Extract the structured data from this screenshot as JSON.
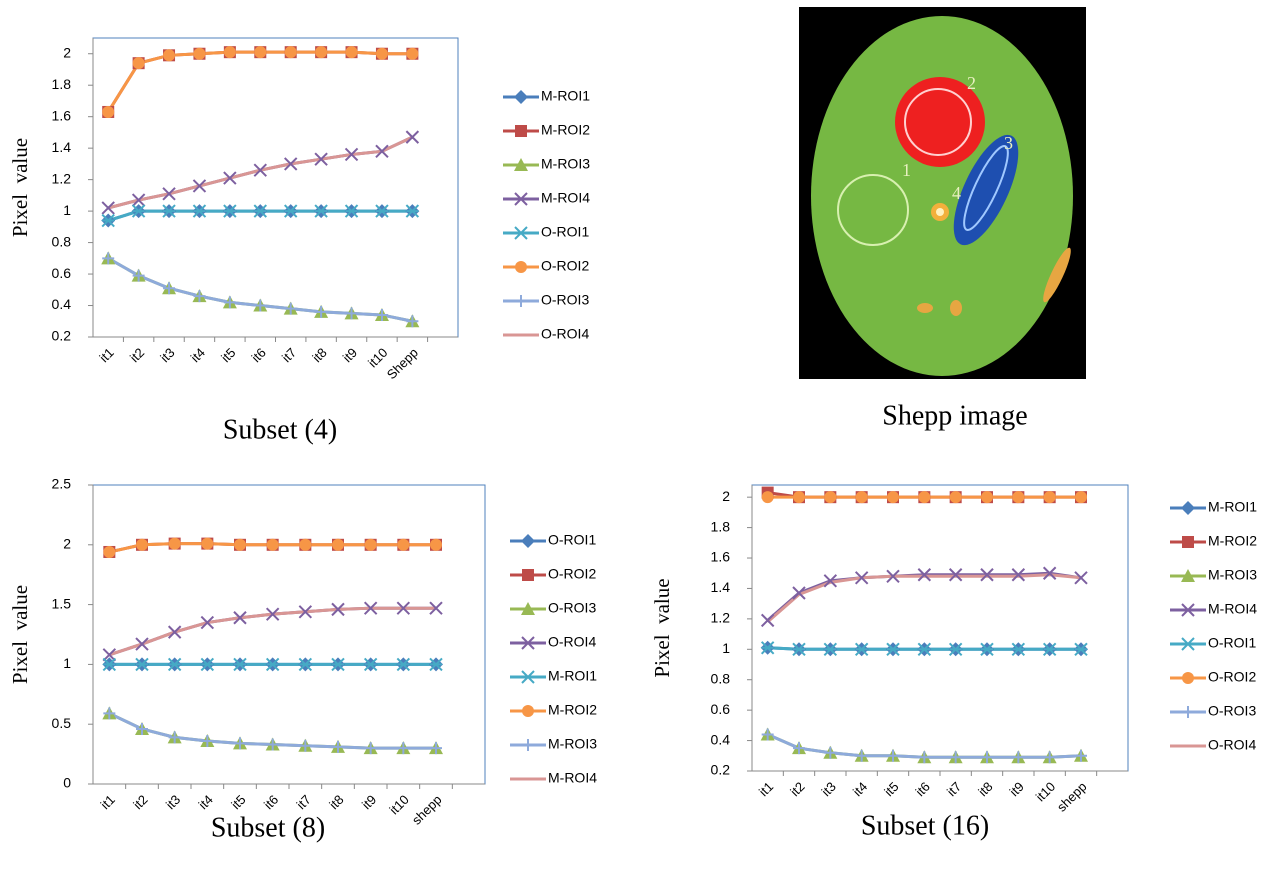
{
  "chart_data": [
    {
      "type": "line",
      "title": "Subset (4)",
      "y_label": "Pixel  value",
      "categories": [
        "it1",
        "it2",
        "it3",
        "it4",
        "it5",
        "it6",
        "it7",
        "it8",
        "it9",
        "it10",
        "Shepp"
      ],
      "ylim": [
        0.2,
        2.1
      ],
      "yticks": [
        0.2,
        0.4,
        0.6,
        0.8,
        1,
        1.2,
        1.4,
        1.6,
        1.8,
        2
      ],
      "series": [
        {
          "name": "M-ROI1",
          "color": "#4a7ebb",
          "marker": "diamond",
          "values": [
            0.94,
            1,
            1,
            1,
            1,
            1,
            1,
            1,
            1,
            1,
            1
          ]
        },
        {
          "name": "M-ROI2",
          "color": "#be4b48",
          "marker": "square",
          "values": [
            1.63,
            1.94,
            1.99,
            2.0,
            2.01,
            2.01,
            2.01,
            2.01,
            2.01,
            2.0,
            2.0
          ]
        },
        {
          "name": "M-ROI3",
          "color": "#98b954",
          "marker": "triangle",
          "values": [
            0.7,
            0.59,
            0.51,
            0.46,
            0.42,
            0.4,
            0.38,
            0.36,
            0.35,
            0.34,
            0.3
          ]
        },
        {
          "name": "M-ROI4",
          "color": "#7d60a0",
          "marker": "x",
          "values": [
            1.02,
            1.07,
            1.11,
            1.16,
            1.21,
            1.26,
            1.3,
            1.33,
            1.36,
            1.38,
            1.47
          ]
        },
        {
          "name": "O-ROI1",
          "color": "#46aac5",
          "marker": "asterisk",
          "values": [
            0.94,
            1,
            1,
            1,
            1,
            1,
            1,
            1,
            1,
            1,
            1
          ]
        },
        {
          "name": "O-ROI2",
          "color": "#f79646",
          "marker": "circle",
          "values": [
            1.63,
            1.94,
            1.99,
            2.0,
            2.01,
            2.01,
            2.01,
            2.01,
            2.01,
            2.0,
            2.0
          ]
        },
        {
          "name": "O-ROI3",
          "color": "#8eaadb",
          "marker": "plus",
          "values": [
            0.7,
            0.59,
            0.51,
            0.46,
            0.42,
            0.4,
            0.38,
            0.36,
            0.35,
            0.34,
            0.3
          ]
        },
        {
          "name": "O-ROI4",
          "color": "#d99694",
          "marker": "none",
          "values": [
            1.02,
            1.07,
            1.11,
            1.16,
            1.21,
            1.26,
            1.3,
            1.33,
            1.36,
            1.38,
            1.47
          ]
        }
      ]
    },
    {
      "type": "line",
      "title": "Subset (8)",
      "y_label": "Pixel  value",
      "categories": [
        "it1",
        "it2",
        "it3",
        "it4",
        "it5",
        "it6",
        "it7",
        "it8",
        "it9",
        "it10",
        "shepp"
      ],
      "ylim": [
        0,
        2.5
      ],
      "yticks": [
        0,
        0.5,
        1,
        1.5,
        2,
        2.5
      ],
      "series": [
        {
          "name": "O-ROI1",
          "color": "#4a7ebb",
          "marker": "diamond",
          "values": [
            1,
            1,
            1,
            1,
            1,
            1,
            1,
            1,
            1,
            1,
            1
          ]
        },
        {
          "name": "O-ROI2",
          "color": "#be4b48",
          "marker": "square",
          "values": [
            1.94,
            2.0,
            2.01,
            2.01,
            2.0,
            2.0,
            2.0,
            2.0,
            2.0,
            2.0,
            2.0
          ]
        },
        {
          "name": "O-ROI3",
          "color": "#98b954",
          "marker": "triangle",
          "values": [
            0.59,
            0.46,
            0.39,
            0.36,
            0.34,
            0.33,
            0.32,
            0.31,
            0.3,
            0.3,
            0.3
          ]
        },
        {
          "name": "O-ROI4",
          "color": "#7d60a0",
          "marker": "x",
          "values": [
            1.08,
            1.17,
            1.27,
            1.35,
            1.39,
            1.42,
            1.44,
            1.46,
            1.47,
            1.47,
            1.47
          ]
        },
        {
          "name": "M-ROI1",
          "color": "#46aac5",
          "marker": "asterisk",
          "values": [
            1,
            1,
            1,
            1,
            1,
            1,
            1,
            1,
            1,
            1,
            1
          ]
        },
        {
          "name": "M-ROI2",
          "color": "#f79646",
          "marker": "circle",
          "values": [
            1.94,
            2.0,
            2.01,
            2.01,
            2.0,
            2.0,
            2.0,
            2.0,
            2.0,
            2.0,
            2.0
          ]
        },
        {
          "name": "M-ROI3",
          "color": "#8eaadb",
          "marker": "plus",
          "values": [
            0.59,
            0.46,
            0.39,
            0.36,
            0.34,
            0.33,
            0.32,
            0.31,
            0.3,
            0.3,
            0.3
          ]
        },
        {
          "name": "M-ROI4",
          "color": "#d99694",
          "marker": "none",
          "values": [
            1.08,
            1.17,
            1.27,
            1.35,
            1.39,
            1.42,
            1.44,
            1.46,
            1.47,
            1.47,
            1.47
          ]
        }
      ]
    },
    {
      "type": "line",
      "title": "Subset (16)",
      "y_label": "Pixel  value",
      "categories": [
        "it1",
        "it2",
        "it3",
        "it4",
        "it5",
        "it6",
        "it7",
        "it8",
        "it9",
        "it10",
        "shepp"
      ],
      "ylim": [
        0.2,
        2.08
      ],
      "yticks": [
        0.2,
        0.4,
        0.6,
        0.8,
        1,
        1.2,
        1.4,
        1.6,
        1.8,
        2
      ],
      "series": [
        {
          "name": "M-ROI1",
          "color": "#4a7ebb",
          "marker": "diamond",
          "values": [
            1.01,
            1,
            1,
            1,
            1,
            1,
            1,
            1,
            1,
            1,
            1
          ]
        },
        {
          "name": "M-ROI2",
          "color": "#be4b48",
          "marker": "square",
          "values": [
            2.03,
            2.0,
            2.0,
            2.0,
            2.0,
            2.0,
            2.0,
            2.0,
            2.0,
            2.0,
            2.0
          ]
        },
        {
          "name": "M-ROI3",
          "color": "#98b954",
          "marker": "triangle",
          "values": [
            0.44,
            0.35,
            0.32,
            0.3,
            0.3,
            0.29,
            0.29,
            0.29,
            0.29,
            0.29,
            0.3
          ]
        },
        {
          "name": "M-ROI4",
          "color": "#7d60a0",
          "marker": "x",
          "values": [
            1.19,
            1.37,
            1.45,
            1.47,
            1.48,
            1.49,
            1.49,
            1.49,
            1.49,
            1.5,
            1.47
          ]
        },
        {
          "name": "O-ROI1",
          "color": "#46aac5",
          "marker": "asterisk",
          "values": [
            1.01,
            1,
            1,
            1,
            1,
            1,
            1,
            1,
            1,
            1,
            1
          ]
        },
        {
          "name": "O-ROI2",
          "color": "#f79646",
          "marker": "circle",
          "values": [
            2.0,
            2.0,
            2.0,
            2.0,
            2.0,
            2.0,
            2.0,
            2.0,
            2.0,
            2.0,
            2.0
          ]
        },
        {
          "name": "O-ROI3",
          "color": "#8eaadb",
          "marker": "plus",
          "values": [
            0.44,
            0.35,
            0.32,
            0.3,
            0.3,
            0.29,
            0.29,
            0.29,
            0.29,
            0.29,
            0.3
          ]
        },
        {
          "name": "O-ROI4",
          "color": "#d99694",
          "marker": "none",
          "values": [
            1.18,
            1.36,
            1.44,
            1.47,
            1.48,
            1.48,
            1.48,
            1.48,
            1.48,
            1.49,
            1.47
          ]
        }
      ]
    }
  ],
  "image": {
    "caption": "Shepp image",
    "labels": [
      "1",
      "2",
      "3",
      "4"
    ]
  }
}
